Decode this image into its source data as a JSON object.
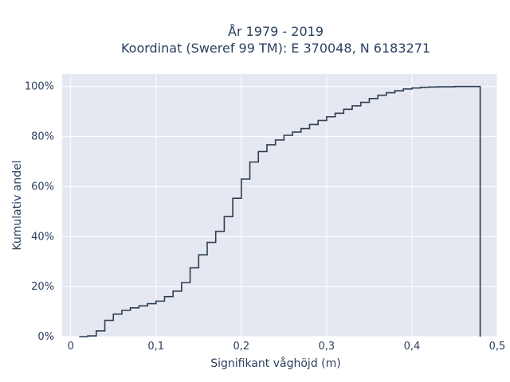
{
  "chart_data": {
    "type": "line",
    "subtype": "empirical-cdf-step",
    "title_line1": "År 1979 - 2019",
    "title_line2": "Koordinat (Sweref 99 TM): E 370048, N 6183271",
    "xlabel": "Signifikant våghöjd (m)",
    "ylabel": "Kumulativ andel",
    "xlim": [
      -0.01,
      0.5
    ],
    "ylim": [
      0,
      1.05
    ],
    "x_ticks": [
      0,
      0.1,
      0.2,
      0.3,
      0.4,
      0.5
    ],
    "x_tick_labels": [
      "0",
      "0,1",
      "0,2",
      "0,3",
      "0,4",
      "0,5"
    ],
    "y_ticks": [
      0,
      0.2,
      0.4,
      0.6,
      0.8,
      1.0
    ],
    "y_tick_labels": [
      "0%",
      "20%",
      "40%",
      "60%",
      "80%",
      "100%"
    ],
    "grid": true,
    "colors": {
      "plot_bg": "#e5e8f1",
      "grid": "#ffffff",
      "line": "#2c3e50"
    },
    "x": [
      0.01,
      0.02,
      0.03,
      0.04,
      0.05,
      0.06,
      0.07,
      0.08,
      0.09,
      0.1,
      0.11,
      0.12,
      0.13,
      0.14,
      0.15,
      0.16,
      0.17,
      0.18,
      0.19,
      0.2,
      0.21,
      0.22,
      0.23,
      0.24,
      0.25,
      0.26,
      0.27,
      0.28,
      0.29,
      0.3,
      0.31,
      0.32,
      0.33,
      0.34,
      0.35,
      0.36,
      0.37,
      0.38,
      0.39,
      0.4,
      0.41,
      0.42,
      0.43,
      0.44,
      0.45,
      0.46,
      0.47,
      0.48
    ],
    "y": [
      0.0,
      0.003,
      0.023,
      0.065,
      0.09,
      0.105,
      0.115,
      0.123,
      0.132,
      0.142,
      0.16,
      0.182,
      0.216,
      0.275,
      0.327,
      0.377,
      0.421,
      0.48,
      0.553,
      0.63,
      0.698,
      0.74,
      0.767,
      0.786,
      0.805,
      0.818,
      0.832,
      0.848,
      0.864,
      0.879,
      0.893,
      0.909,
      0.923,
      0.937,
      0.952,
      0.965,
      0.975,
      0.983,
      0.99,
      0.994,
      0.997,
      0.998,
      0.999,
      0.999,
      1.0,
      1.0,
      1.0,
      1.0
    ]
  }
}
